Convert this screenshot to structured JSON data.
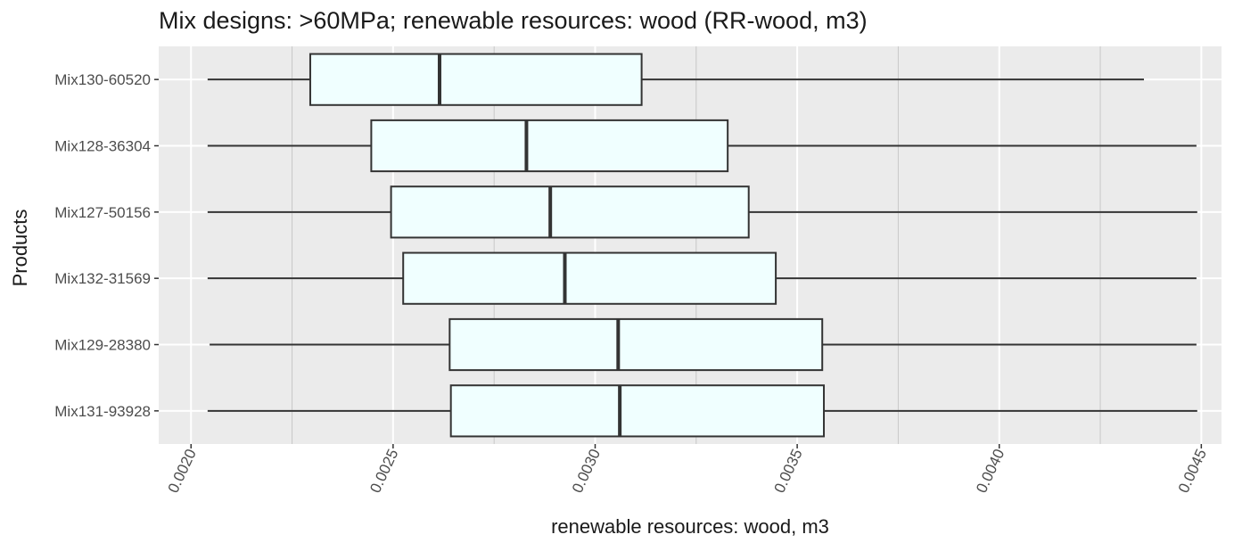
{
  "chart_data": {
    "type": "boxplot",
    "orientation": "horizontal",
    "title": "Mix designs: >60MPa; renewable resources: wood (RR-wood, m3)",
    "xlabel": "renewable resources: wood, m3",
    "ylabel": "Products",
    "xlim": [
      0.00192,
      0.00455
    ],
    "x_ticks": [
      "0.0020",
      "0.0025",
      "0.0030",
      "0.0035",
      "0.0040",
      "0.0045"
    ],
    "x_tick_values": [
      0.002,
      0.0025,
      0.003,
      0.0035,
      0.004,
      0.0045
    ],
    "grid": true,
    "categories": [
      "Mix130-60520",
      "Mix128-36304",
      "Mix127-50156",
      "Mix132-31569",
      "Mix129-28380",
      "Mix131-93928"
    ],
    "boxes": [
      {
        "name": "Mix130-60520",
        "min": 0.002041,
        "q1": 0.002295,
        "median": 0.002615,
        "q3": 0.003115,
        "max": 0.004358
      },
      {
        "name": "Mix128-36304",
        "min": 0.002041,
        "q1": 0.002446,
        "median": 0.00283,
        "q3": 0.003328,
        "max": 0.004488
      },
      {
        "name": "Mix127-50156",
        "min": 0.002041,
        "q1": 0.002495,
        "median": 0.002889,
        "q3": 0.00338,
        "max": 0.00449
      },
      {
        "name": "Mix132-31569",
        "min": 0.002041,
        "q1": 0.002525,
        "median": 0.002925,
        "q3": 0.003447,
        "max": 0.004488
      },
      {
        "name": "Mix129-28380",
        "min": 0.002046,
        "q1": 0.00264,
        "median": 0.003057,
        "q3": 0.003562,
        "max": 0.004488
      },
      {
        "name": "Mix131-93928",
        "min": 0.002041,
        "q1": 0.002643,
        "median": 0.003061,
        "q3": 0.003566,
        "max": 0.00449
      }
    ],
    "colors": {
      "panel_background": "#ebebeb",
      "grid_major": "#ffffff",
      "grid_minor": "#c8c8c8",
      "box_fill": "#f0ffff",
      "box_stroke": "#333333",
      "tick_text": "#4d4d4d"
    }
  }
}
